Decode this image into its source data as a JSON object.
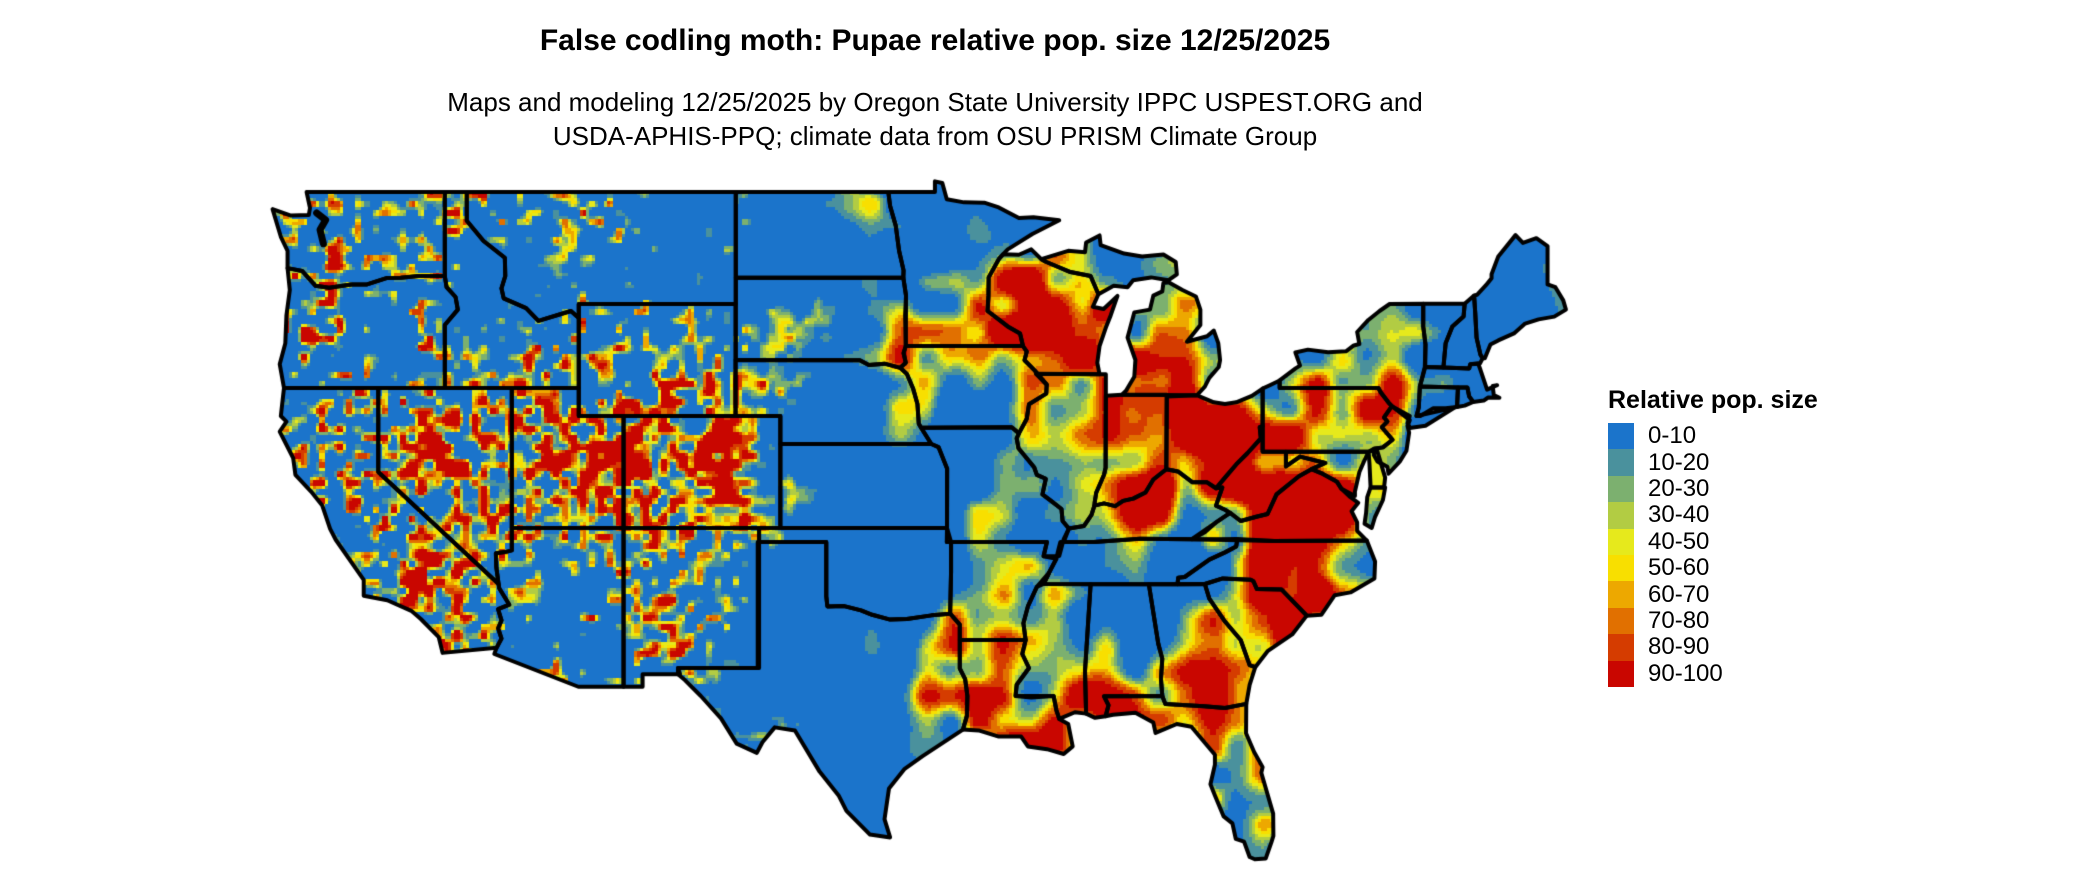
{
  "header": {
    "title": "False codling moth: Pupae relative pop. size 12/25/2025",
    "subtitle_line1": "Maps and modeling 12/25/2025 by Oregon State University IPPC USPEST.ORG and",
    "subtitle_line2": "USDA-APHIS-PPQ; climate data from OSU PRISM Climate Group"
  },
  "map": {
    "state_border_color": "#000000",
    "water_background_color": "#ffffff"
  },
  "legend": {
    "title": "Relative pop. size",
    "items": [
      {
        "label": "0-10",
        "color": "#1b74cb"
      },
      {
        "label": "10-20",
        "color": "#4a919d"
      },
      {
        "label": "20-30",
        "color": "#7cb06f"
      },
      {
        "label": "30-40",
        "color": "#b2cc43"
      },
      {
        "label": "40-50",
        "color": "#e6e91c"
      },
      {
        "label": "50-60",
        "color": "#f8df00"
      },
      {
        "label": "60-70",
        "color": "#eda800"
      },
      {
        "label": "70-80",
        "color": "#e17000"
      },
      {
        "label": "80-90",
        "color": "#d53c00"
      },
      {
        "label": "90-100",
        "color": "#c90600"
      }
    ]
  }
}
